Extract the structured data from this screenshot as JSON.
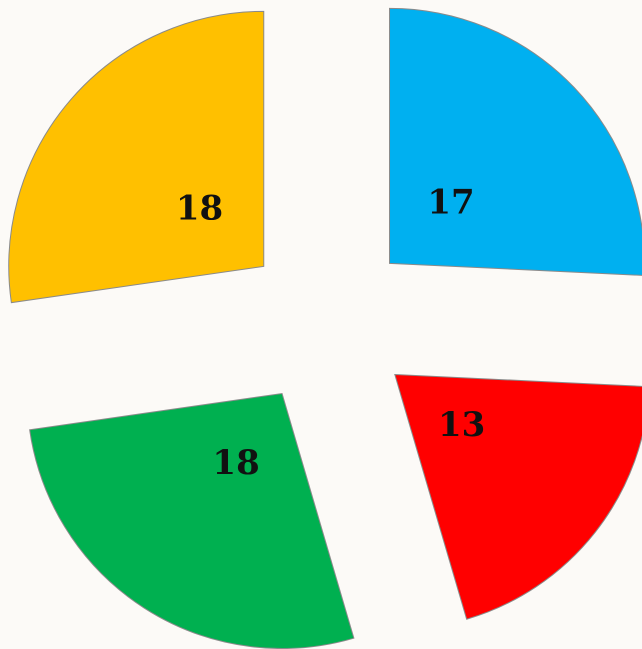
{
  "chart_data": {
    "type": "pie",
    "values": [
      17,
      13,
      18,
      18
    ],
    "colors": [
      "#00b0f0",
      "#ff0000",
      "#00b050",
      "#ffc000"
    ],
    "start_angle": 0,
    "direction": "clockwise",
    "exploded": true
  }
}
